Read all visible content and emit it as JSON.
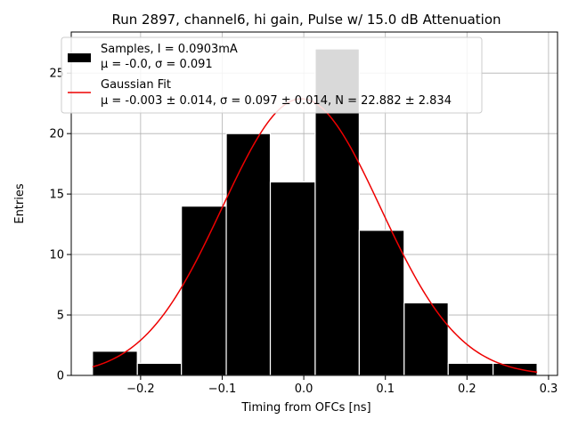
{
  "chart_data": {
    "type": "bar",
    "title": "Run 2897, channel6, hi gain, Pulse w/ 15.0 dB Attenuation",
    "xlabel": "Timing from OFCs [ns]",
    "ylabel": "Entries",
    "xlim": [
      -0.285,
      0.311
    ],
    "ylim": [
      0,
      28.4
    ],
    "xticks": [
      -0.2,
      -0.1,
      0.0,
      0.1,
      0.2,
      0.3
    ],
    "xtick_labels": [
      "−0.2",
      "−0.1",
      "0.0",
      "0.1",
      "0.2",
      "0.3"
    ],
    "yticks": [
      0,
      5,
      10,
      15,
      20,
      25
    ],
    "ytick_labels": [
      "0",
      "5",
      "10",
      "15",
      "20",
      "25"
    ],
    "grid": true,
    "legend_position": "top-left",
    "series": [
      {
        "name": "Samples, I = 0.0903mA",
        "stats_label": "μ = -0.0, σ = 0.091",
        "kind": "histogram",
        "color": "#000000",
        "bins": [
          {
            "x0": -0.259,
            "x1": -0.204,
            "count": 2
          },
          {
            "x0": -0.204,
            "x1": -0.15,
            "count": 1
          },
          {
            "x0": -0.15,
            "x1": -0.095,
            "count": 14
          },
          {
            "x0": -0.095,
            "x1": -0.041,
            "count": 20
          },
          {
            "x0": -0.041,
            "x1": 0.014,
            "count": 16
          },
          {
            "x0": 0.014,
            "x1": 0.068,
            "count": 27
          },
          {
            "x0": 0.068,
            "x1": 0.123,
            "count": 12
          },
          {
            "x0": 0.123,
            "x1": 0.177,
            "count": 6
          },
          {
            "x0": 0.177,
            "x1": 0.232,
            "count": 1
          },
          {
            "x0": 0.232,
            "x1": 0.286,
            "count": 1
          }
        ]
      },
      {
        "name": "Gaussian Fit",
        "stats_label": "μ = -0.003 ± 0.014, σ = 0.097 ± 0.014, N = 22.882 ± 2.834",
        "kind": "gaussian",
        "color": "#ee0000",
        "mu": -0.003,
        "sigma": 0.097,
        "amplitude": 22.882,
        "x_range": [
          -0.259,
          0.286
        ]
      }
    ]
  }
}
